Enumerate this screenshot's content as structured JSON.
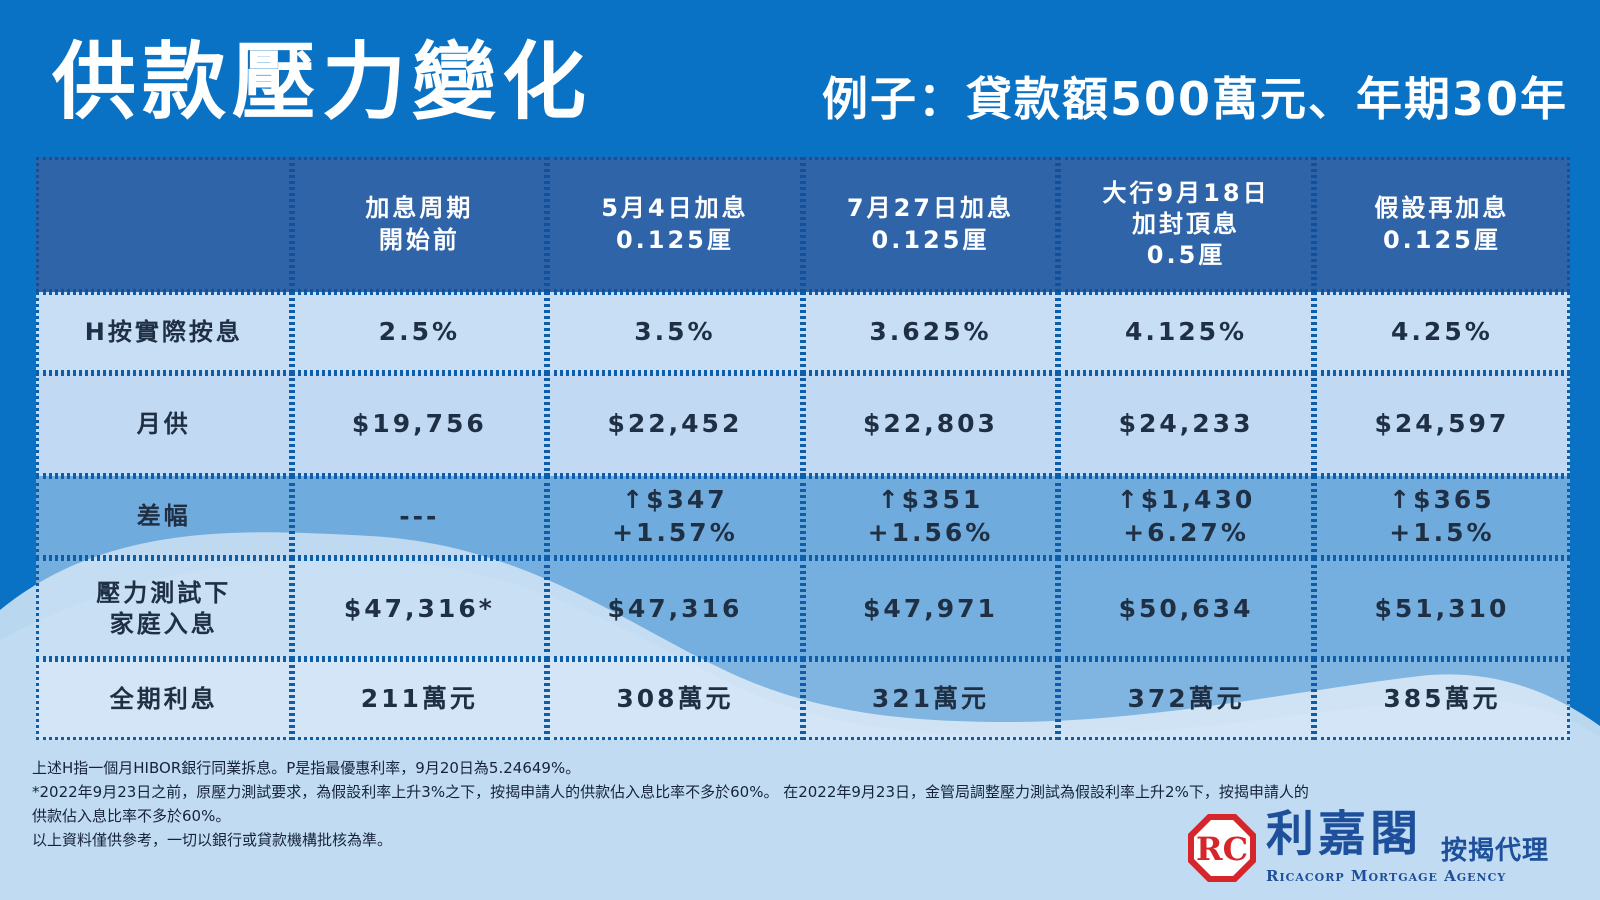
{
  "header": {
    "title": "供款壓力變化",
    "subtitle": "例子：貸款額500萬元、年期30年"
  },
  "table": {
    "columns": [
      [
        "加息周期",
        "開始前"
      ],
      [
        "5月4日加息",
        "0.125厘"
      ],
      [
        "7月27日加息",
        "0.125厘"
      ],
      [
        "大行9月18日",
        "加封頂息",
        "0.5厘"
      ],
      [
        "假設再加息",
        "0.125厘"
      ]
    ],
    "rows": [
      {
        "label": [
          "H按實際按息"
        ],
        "cells": [
          [
            "2.5%"
          ],
          [
            "3.5%"
          ],
          [
            "3.625%"
          ],
          [
            "4.125%"
          ],
          [
            "4.25%"
          ]
        ]
      },
      {
        "label": [
          "月供"
        ],
        "cells": [
          [
            "$19,756"
          ],
          [
            "$22,452"
          ],
          [
            "$22,803"
          ],
          [
            "$24,233"
          ],
          [
            "$24,597"
          ]
        ]
      },
      {
        "label": [
          "差幅"
        ],
        "cells": [
          [
            "---"
          ],
          [
            "↑$347",
            "+1.57%"
          ],
          [
            "↑$351",
            "+1.56%"
          ],
          [
            "↑$1,430",
            "+6.27%"
          ],
          [
            "↑$365",
            "+1.5%"
          ]
        ]
      },
      {
        "label": [
          "壓力測試下",
          "家庭入息"
        ],
        "cells": [
          [
            "$47,316*"
          ],
          [
            "$47,316"
          ],
          [
            "$47,971"
          ],
          [
            "$50,634"
          ],
          [
            "$51,310"
          ]
        ]
      },
      {
        "label": [
          "全期利息"
        ],
        "cells": [
          [
            "211萬元"
          ],
          [
            "308萬元"
          ],
          [
            "321萬元"
          ],
          [
            "372萬元"
          ],
          [
            "385萬元"
          ]
        ]
      }
    ]
  },
  "notes": [
    "上述H指一個月HIBOR銀行同業拆息。P是指最優惠利率，9月20日為5.24649%。",
    " *2022年9月23日之前，原壓力測試要求，為假設利率上升3%之下，按揭申請人的供款佔入息比率不多於60%。 在2022年9月23日，金管局調整壓力測試為假設利率上升2%下，按揭申請人的",
    "供款佔入息比率不多於60%。",
    "以上資料僅供參考，一切以銀行或貸款機構批核為準。"
  ],
  "brand": {
    "name_cn": "利嘉閣",
    "suffix_cn": "按揭代理",
    "name_en": "Ricacorp Mortgage Agency",
    "logo_letters": "RC",
    "colors": {
      "logo_red": "#d6262b",
      "brand_blue": "#1d4f9a"
    }
  },
  "colors": {
    "background": "#0a72c4",
    "header_row": "#2f64a8",
    "wave_light": "#b9d8f0"
  }
}
